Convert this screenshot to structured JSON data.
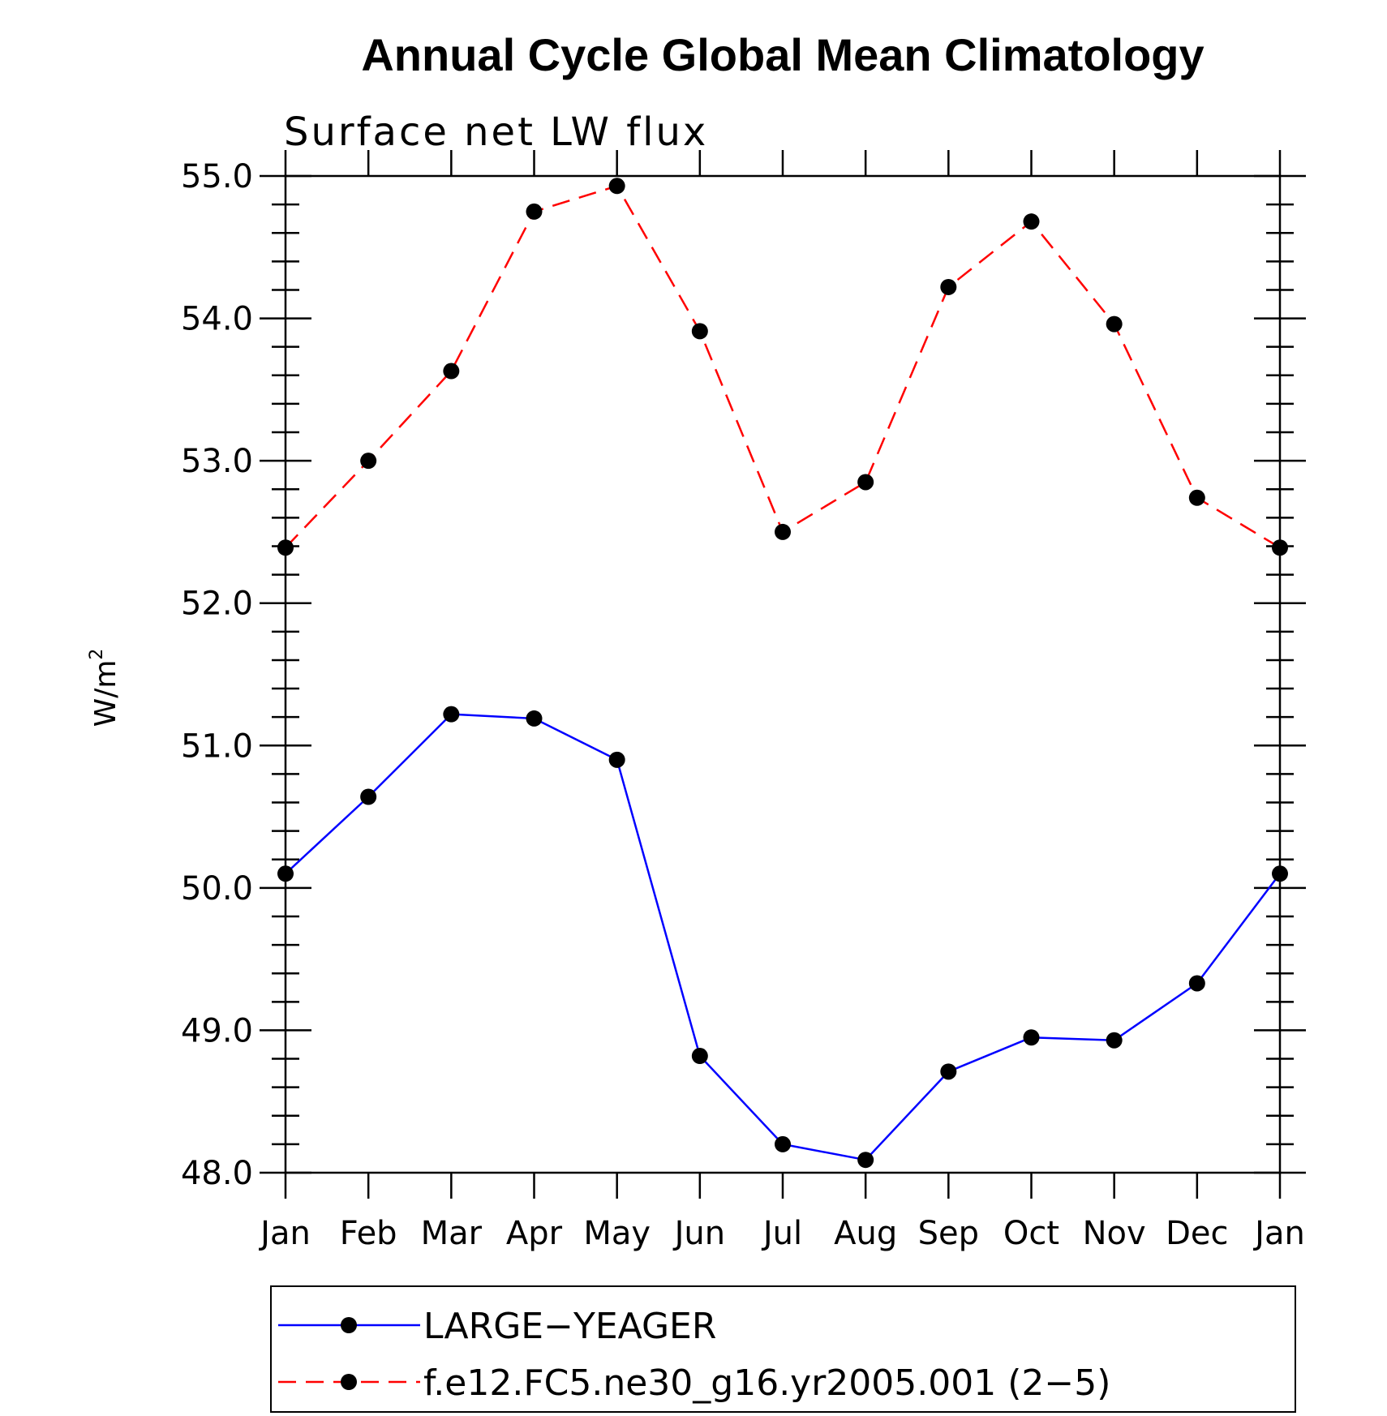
{
  "chart_data": {
    "type": "line",
    "title": "Annual Cycle Global Mean Climatology",
    "subtitle": "Surface net LW flux",
    "ylabel": "W/m",
    "ylabel_sup": "2",
    "xlabel": "",
    "categories": [
      "Jan",
      "Feb",
      "Mar",
      "Apr",
      "May",
      "Jun",
      "Jul",
      "Aug",
      "Sep",
      "Oct",
      "Nov",
      "Dec",
      "Jan"
    ],
    "ylim": [
      48.0,
      55.0
    ],
    "yticks": [
      "48.0",
      "49.0",
      "50.0",
      "51.0",
      "52.0",
      "53.0",
      "54.0",
      "55.0"
    ],
    "series": [
      {
        "name": "LARGE−YEAGER",
        "color": "#0000ff",
        "dash": "solid",
        "values": [
          50.1,
          50.64,
          51.22,
          51.19,
          50.9,
          48.82,
          48.2,
          48.09,
          48.71,
          48.95,
          48.93,
          49.33,
          50.1
        ]
      },
      {
        "name": "f.e12.FC5.ne30_g16.yr2005.001 (2−5)",
        "color": "#ff0000",
        "dash": "dashed",
        "values": [
          52.39,
          53.0,
          53.63,
          54.75,
          54.93,
          53.91,
          52.5,
          52.85,
          54.22,
          54.68,
          53.96,
          52.74,
          52.39
        ]
      }
    ],
    "marker_color": "#000000",
    "legend_position": "bottom"
  }
}
